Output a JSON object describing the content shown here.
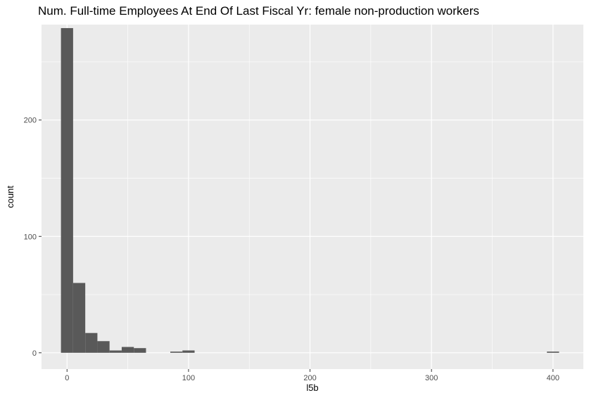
{
  "chart_data": {
    "type": "bar",
    "subtype": "histogram",
    "title": "Num. Full-time Employees At End Of Last Fiscal Yr: female non-production workers",
    "xlabel": "l5b",
    "ylabel": "count",
    "xlim": [
      -21,
      425
    ],
    "ylim": [
      -14,
      282
    ],
    "x_ticks": [
      0,
      100,
      200,
      300,
      400
    ],
    "y_ticks": [
      0,
      100,
      200
    ],
    "grid": true,
    "bin_width": 10,
    "bins": [
      {
        "x": 0,
        "count": 279
      },
      {
        "x": 10,
        "count": 60
      },
      {
        "x": 20,
        "count": 17
      },
      {
        "x": 30,
        "count": 10
      },
      {
        "x": 40,
        "count": 2
      },
      {
        "x": 50,
        "count": 5
      },
      {
        "x": 60,
        "count": 4
      },
      {
        "x": 90,
        "count": 1
      },
      {
        "x": 100,
        "count": 2
      },
      {
        "x": 400,
        "count": 1
      }
    ],
    "colors": {
      "bar": "#595959",
      "panel": "#ebebeb",
      "grid": "#ffffff"
    }
  }
}
